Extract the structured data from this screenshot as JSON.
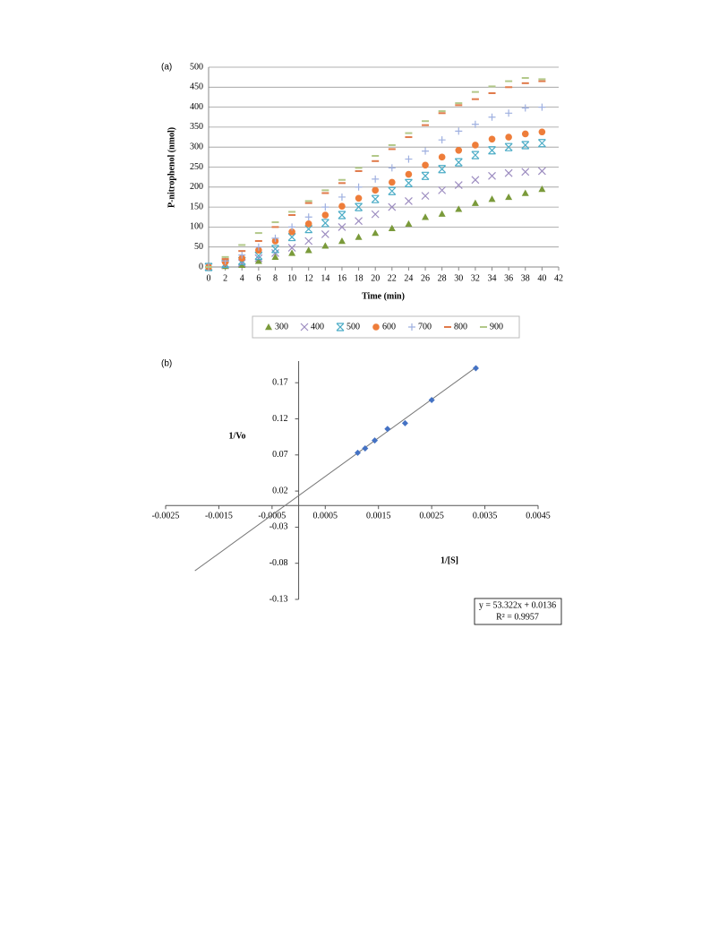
{
  "chart_data": [
    {
      "type": "scatter",
      "label": "(a)",
      "xlabel": "Time (min)",
      "ylabel": "P-nitrophenol (nmol)",
      "x": [
        0,
        2,
        4,
        6,
        8,
        10,
        12,
        14,
        16,
        18,
        20,
        22,
        24,
        26,
        28,
        30,
        32,
        34,
        36,
        38,
        40
      ],
      "xlim": [
        0,
        42
      ],
      "xticks": [
        0,
        2,
        4,
        6,
        8,
        10,
        12,
        14,
        16,
        18,
        20,
        22,
        24,
        26,
        28,
        30,
        32,
        34,
        36,
        38,
        40,
        42
      ],
      "ylim": [
        0,
        500
      ],
      "yticks": [
        0,
        50,
        100,
        150,
        200,
        250,
        300,
        350,
        400,
        450,
        500
      ],
      "grid": true,
      "legend": "bottom",
      "series": [
        {
          "name": "300",
          "color": "#7a9a3a",
          "marker": "triangle",
          "values": [
            0,
            2,
            5,
            15,
            25,
            35,
            42,
            53,
            65,
            75,
            85,
            97,
            108,
            125,
            133,
            145,
            160,
            170,
            175,
            185,
            195
          ]
        },
        {
          "name": "400",
          "color": "#9c8cc0",
          "marker": "cross",
          "values": [
            0,
            5,
            10,
            22,
            35,
            48,
            65,
            82,
            100,
            115,
            132,
            150,
            165,
            178,
            192,
            205,
            218,
            228,
            235,
            238,
            240
          ]
        },
        {
          "name": "500",
          "color": "#4bacc6",
          "marker": "asterisk",
          "values": [
            0,
            8,
            15,
            28,
            45,
            75,
            95,
            110,
            130,
            150,
            170,
            190,
            210,
            228,
            245,
            262,
            280,
            292,
            300,
            305,
            310
          ]
        },
        {
          "name": "600",
          "color": "#ee7d3a",
          "marker": "circle",
          "values": [
            0,
            12,
            22,
            42,
            65,
            88,
            108,
            130,
            152,
            172,
            192,
            212,
            232,
            255,
            275,
            292,
            305,
            320,
            325,
            333,
            338
          ]
        },
        {
          "name": "700",
          "color": "#9fb0e0",
          "marker": "plus",
          "values": [
            0,
            15,
            30,
            50,
            72,
            100,
            125,
            150,
            175,
            200,
            220,
            248,
            270,
            290,
            318,
            340,
            357,
            375,
            385,
            398,
            400
          ]
        },
        {
          "name": "800",
          "color": "#e07a4a",
          "marker": "dash",
          "values": [
            0,
            20,
            40,
            65,
            100,
            130,
            160,
            185,
            210,
            240,
            265,
            295,
            325,
            355,
            385,
            405,
            420,
            435,
            450,
            460,
            465
          ]
        },
        {
          "name": "900",
          "color": "#b2c889",
          "marker": "dash",
          "values": [
            0,
            25,
            55,
            85,
            112,
            138,
            165,
            192,
            218,
            248,
            278,
            305,
            335,
            365,
            390,
            410,
            438,
            452,
            465,
            473,
            470
          ]
        }
      ]
    },
    {
      "type": "scatter",
      "label": "(b)",
      "xlabel": "1/[S]",
      "ylabel": "1/Vo",
      "x": [
        0.00111,
        0.00125,
        0.00143,
        0.00167,
        0.002,
        0.0025,
        0.00333
      ],
      "y": [
        0.073,
        0.079,
        0.09,
        0.106,
        0.114,
        0.146,
        0.19
      ],
      "color": "#4472c4",
      "xlim": [
        -0.0025,
        0.0045
      ],
      "xticks": [
        -0.0025,
        -0.0015,
        -0.0005,
        0.0005,
        0.0015,
        0.0025,
        0.0035,
        0.0045
      ],
      "ylim": [
        -0.13,
        0.2
      ],
      "yticks": [
        -0.13,
        -0.08,
        -0.03,
        0.02,
        0.07,
        0.12,
        0.17
      ],
      "trendline": {
        "slope": 53.322,
        "intercept": 0.0136,
        "x": [
          -0.00195,
          0.00336
        ]
      },
      "equation": "y = 53.322x + 0.0136",
      "r2": "R² = 0.9957"
    }
  ]
}
